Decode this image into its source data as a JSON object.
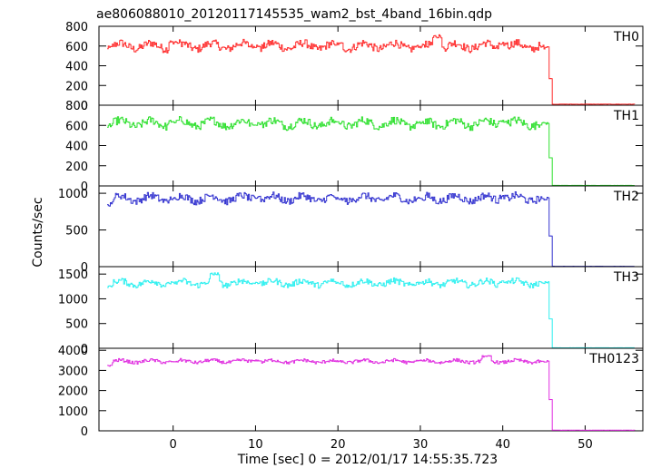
{
  "chart_data": {
    "type": "line",
    "title": "ae806088010_20120117145535_wam2_bst_4band_16bin.qdp",
    "xlabel": "Time [sec] 0 = 2012/01/17 14:55:35.723",
    "ylabel": "Counts/sec",
    "xlim": [
      -9,
      57
    ],
    "xticks": [
      "0",
      "10",
      "20",
      "30",
      "40",
      "50"
    ],
    "shared_x": true,
    "step_time": 45.5,
    "panels": [
      {
        "name": "TH0",
        "color": "#ff3030",
        "ylim": [
          0,
          800
        ],
        "yticks": [
          "0",
          "200",
          "400",
          "600",
          "800"
        ],
        "level_before": 600,
        "level_after": 10,
        "noise": 40,
        "points": [
          [
            -8,
            580
          ],
          [
            0,
            640
          ],
          [
            10,
            600
          ],
          [
            20,
            620
          ],
          [
            30,
            600
          ],
          [
            32,
            700
          ],
          [
            40,
            620
          ],
          [
            45,
            590
          ],
          [
            45.5,
            300
          ],
          [
            46,
            20
          ],
          [
            56,
            10
          ]
        ]
      },
      {
        "name": "TH1",
        "color": "#30e030",
        "ylim": [
          0,
          800
        ],
        "yticks": [
          "0",
          "200",
          "400",
          "600",
          "800"
        ],
        "level_before": 620,
        "level_after": 5,
        "noise": 40,
        "points": [
          [
            -8,
            600
          ],
          [
            0,
            640
          ],
          [
            10,
            620
          ],
          [
            20,
            630
          ],
          [
            30,
            620
          ],
          [
            40,
            640
          ],
          [
            45,
            620
          ],
          [
            45.5,
            300
          ],
          [
            46,
            10
          ],
          [
            56,
            5
          ]
        ]
      },
      {
        "name": "TH2",
        "color": "#3535d0",
        "ylim": [
          0,
          1100
        ],
        "yticks": [
          "0",
          "500",
          "1000"
        ],
        "level_before": 930,
        "level_after": 5,
        "noise": 50,
        "points": [
          [
            -8,
            850
          ],
          [
            0,
            930
          ],
          [
            10,
            950
          ],
          [
            20,
            930
          ],
          [
            30,
            920
          ],
          [
            40,
            950
          ],
          [
            45,
            930
          ],
          [
            45.5,
            300
          ],
          [
            46,
            10
          ],
          [
            56,
            5
          ]
        ]
      },
      {
        "name": "TH3",
        "color": "#30f0f0",
        "ylim": [
          0,
          1650
        ],
        "yticks": [
          "0",
          "500",
          "1000",
          "1500"
        ],
        "level_before": 1320,
        "level_after": 10,
        "noise": 60,
        "points": [
          [
            -8,
            1250
          ],
          [
            0,
            1320
          ],
          [
            5,
            1500
          ],
          [
            10,
            1320
          ],
          [
            20,
            1330
          ],
          [
            30,
            1320
          ],
          [
            40,
            1340
          ],
          [
            45,
            1320
          ],
          [
            45.5,
            400
          ],
          [
            46,
            20
          ],
          [
            56,
            10
          ]
        ]
      },
      {
        "name": "TH0123",
        "color": "#e030e0",
        "ylim": [
          0,
          4100
        ],
        "yticks": [
          "0",
          "1000",
          "2000",
          "3000",
          "4000"
        ],
        "level_before": 3450,
        "level_after": 30,
        "noise": 80,
        "points": [
          [
            -8,
            3250
          ],
          [
            0,
            3450
          ],
          [
            10,
            3500
          ],
          [
            20,
            3450
          ],
          [
            30,
            3500
          ],
          [
            38,
            3700
          ],
          [
            45,
            3450
          ],
          [
            45.5,
            1300
          ],
          [
            46,
            60
          ],
          [
            56,
            30
          ]
        ]
      }
    ]
  }
}
